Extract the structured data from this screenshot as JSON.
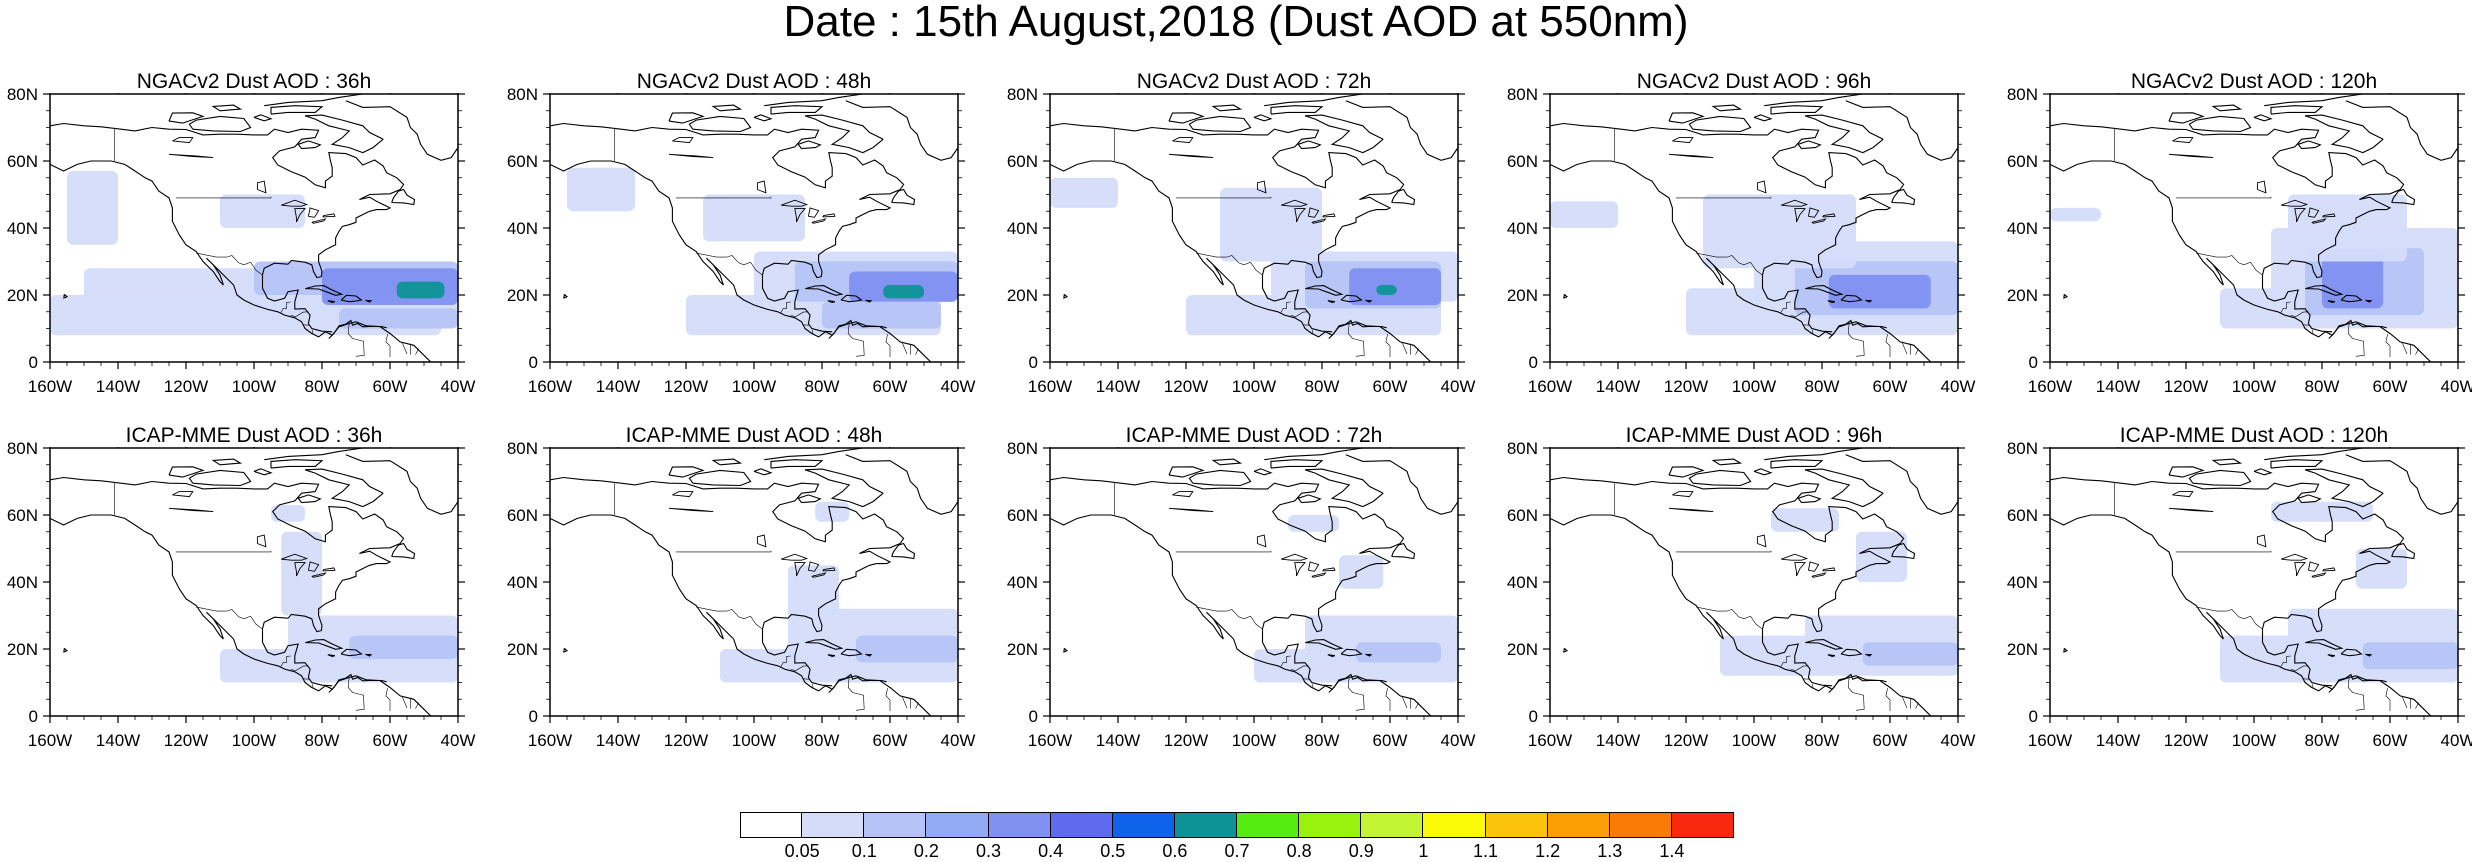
{
  "title": "Date : 15th August,2018 (Dust AOD at 550nm)",
  "panels": [
    {
      "title": "NGACv2 Dust AOD : 36h"
    },
    {
      "title": "NGACv2 Dust AOD : 48h"
    },
    {
      "title": "NGACv2 Dust AOD : 72h"
    },
    {
      "title": "NGACv2 Dust AOD : 96h"
    },
    {
      "title": "NGACv2 Dust AOD : 120h"
    },
    {
      "title": "ICAP-MME Dust AOD : 36h"
    },
    {
      "title": "ICAP-MME Dust AOD : 48h"
    },
    {
      "title": "ICAP-MME Dust AOD : 72h"
    },
    {
      "title": "ICAP-MME Dust AOD : 96h"
    },
    {
      "title": "ICAP-MME Dust AOD : 120h"
    }
  ],
  "x_ticks": [
    "160W",
    "140W",
    "120W",
    "100W",
    "80W",
    "60W",
    "40W"
  ],
  "y_ticks": [
    "0",
    "20N",
    "40N",
    "60N",
    "80N"
  ],
  "x_range_deg": [
    -160,
    -40
  ],
  "y_range_deg": [
    0,
    80
  ],
  "colorbar": {
    "labels": [
      "0.05",
      "0.1",
      "0.2",
      "0.3",
      "0.4",
      "0.5",
      "0.6",
      "0.7",
      "0.8",
      "0.9",
      "1",
      "1.1",
      "1.2",
      "1.3",
      "1.4"
    ],
    "colors": [
      "#ffffff",
      "#d4dcfa",
      "#b6c3f7",
      "#93abf3",
      "#7f90f1",
      "#5f6bee",
      "#0f63ea",
      "#0d9295",
      "#55ec12",
      "#98f20e",
      "#c4f535",
      "#f9f908",
      "#fbc30b",
      "#fb9e05",
      "#f97a07",
      "#f92910"
    ]
  },
  "colors": {
    "land_outline": "#000000",
    "aod_light": "#d4dcfa",
    "aod_mid": "#b6c3f7",
    "aod_high": "#7f90f1",
    "aod_peak": "#0d9295"
  }
}
